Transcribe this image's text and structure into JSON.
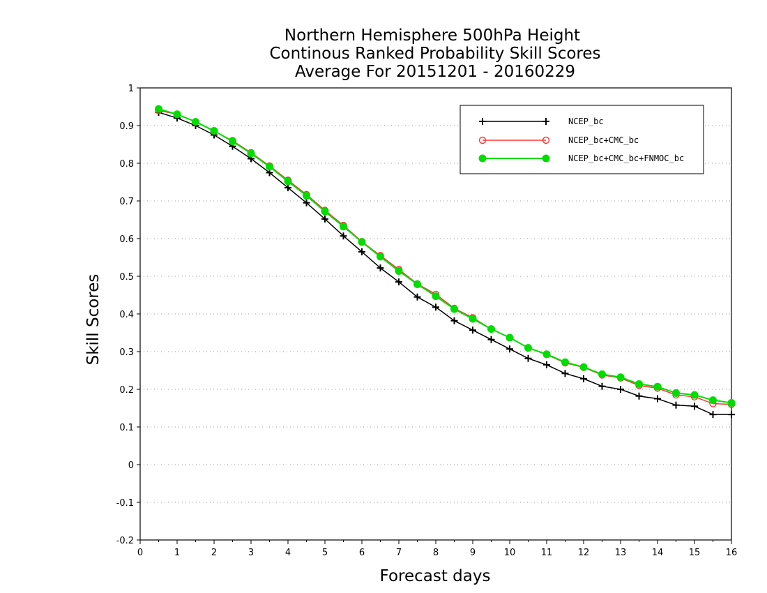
{
  "chart_data": {
    "type": "line",
    "title": [
      "Northern Hemisphere 500hPa Height",
      "Continous Ranked Probability Skill Scores",
      "Average For 20151201 - 20160229"
    ],
    "xlabel": "Forecast days",
    "ylabel": "Skill Scores",
    "xlim": [
      0,
      16
    ],
    "ylim": [
      -0.2,
      1
    ],
    "xticks": [
      "0",
      "1",
      "2",
      "3",
      "4",
      "5",
      "6",
      "7",
      "8",
      "9",
      "10",
      "11",
      "12",
      "13",
      "14",
      "15",
      "16"
    ],
    "yticks": [
      "-0.2",
      "-0.1",
      "0",
      "0.1",
      "0.2",
      "0.3",
      "0.4",
      "0.5",
      "0.6",
      "0.7",
      "0.8",
      "0.9",
      "1"
    ],
    "grid": "horizontal dotted",
    "legend_position": "top-right",
    "x": [
      0.5,
      1,
      1.5,
      2,
      2.5,
      3,
      3.5,
      4,
      4.5,
      5,
      5.5,
      6,
      6.5,
      7,
      7.5,
      8,
      8.5,
      9,
      9.5,
      10,
      10.5,
      11,
      11.5,
      12,
      12.5,
      13,
      13.5,
      14,
      14.5,
      15,
      15.5,
      16
    ],
    "series": [
      {
        "name": "NCEP_bc",
        "color": "#000000",
        "marker": "plus",
        "values": [
          0.935,
          0.92,
          0.9,
          0.875,
          0.845,
          0.812,
          0.775,
          0.735,
          0.695,
          0.652,
          0.607,
          0.565,
          0.522,
          0.485,
          0.445,
          0.418,
          0.382,
          0.357,
          0.332,
          0.307,
          0.282,
          0.265,
          0.242,
          0.228,
          0.208,
          0.2,
          0.182,
          0.175,
          0.158,
          0.155,
          0.133,
          0.133
        ]
      },
      {
        "name": "NCEP_bc+CMC_bc",
        "color": "#ff3333",
        "marker": "open-circle",
        "values": [
          0.94,
          0.93,
          0.91,
          0.885,
          0.86,
          0.828,
          0.793,
          0.755,
          0.717,
          0.675,
          0.635,
          0.592,
          0.555,
          0.518,
          0.48,
          0.452,
          0.415,
          0.39,
          0.36,
          0.337,
          0.31,
          0.292,
          0.27,
          0.258,
          0.238,
          0.23,
          0.21,
          0.203,
          0.185,
          0.18,
          0.162,
          0.16
        ]
      },
      {
        "name": "NCEP_bc+CMC_bc+FNMOC_bc",
        "color": "#00dd00",
        "marker": "filled-circle",
        "values": [
          0.944,
          0.93,
          0.91,
          0.886,
          0.858,
          0.826,
          0.791,
          0.752,
          0.714,
          0.672,
          0.632,
          0.591,
          0.552,
          0.514,
          0.479,
          0.447,
          0.413,
          0.387,
          0.36,
          0.337,
          0.31,
          0.293,
          0.272,
          0.259,
          0.24,
          0.232,
          0.214,
          0.207,
          0.19,
          0.185,
          0.171,
          0.164
        ]
      }
    ]
  }
}
